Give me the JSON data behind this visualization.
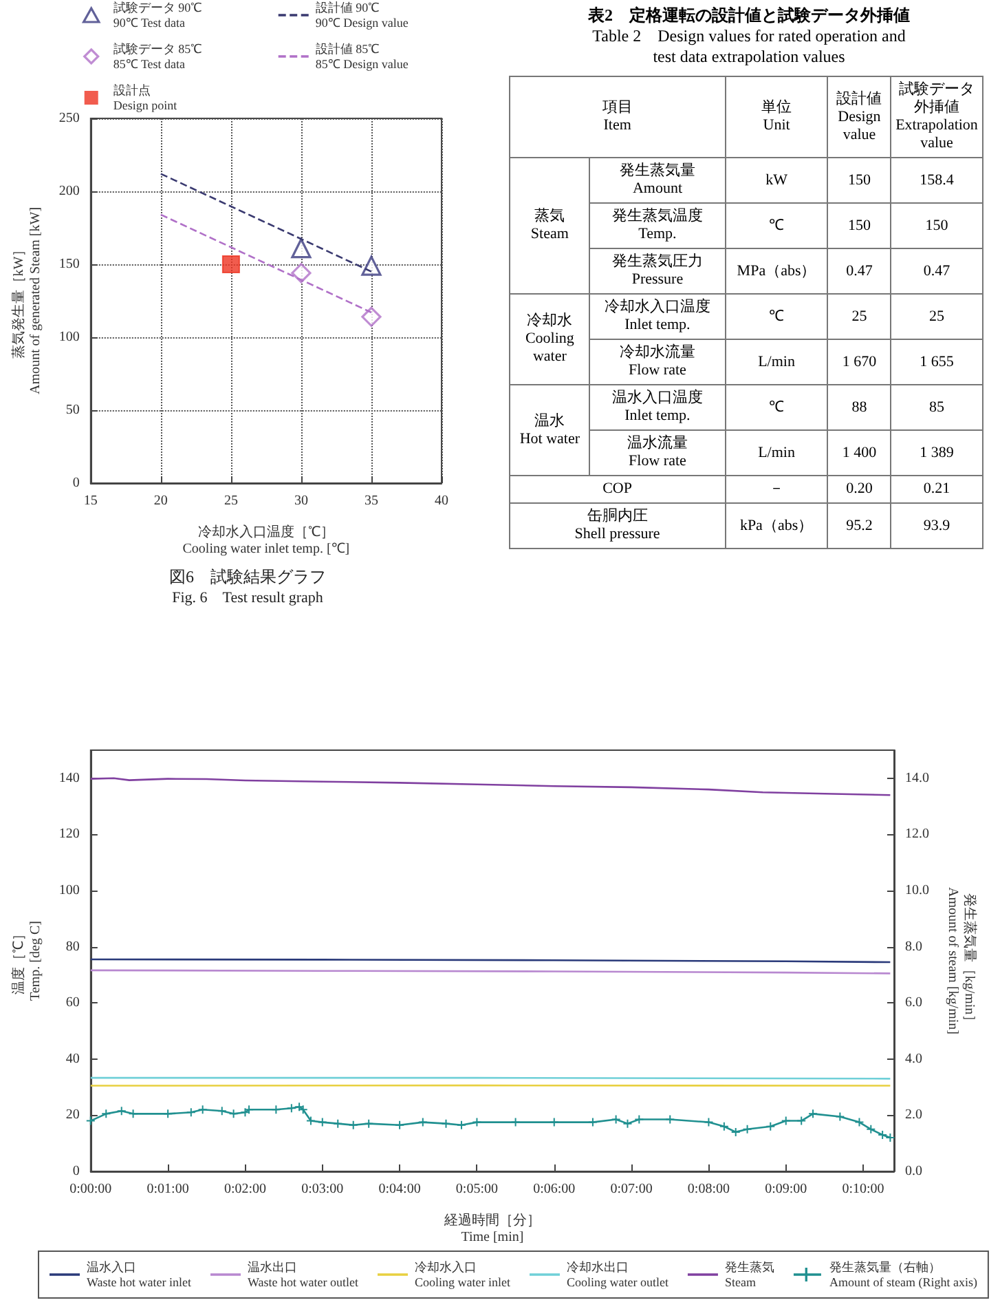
{
  "chart_data": [
    {
      "type": "scatter",
      "title": "図6　試験結果グラフ",
      "subtitle": "Fig. 6　Test result graph",
      "xlabel": "冷却水入口温度［℃］\nCooling water inlet temp. [℃]",
      "ylabel": "蒸気発生量［kW］\nAmount of generated Steam [kW]",
      "xlim": [
        15,
        40
      ],
      "xticks": [
        15,
        20,
        25,
        30,
        35,
        40
      ],
      "ylim": [
        0,
        250
      ],
      "yticks": [
        0,
        50,
        100,
        150,
        200,
        250
      ],
      "grid": true,
      "legend": "top",
      "series": [
        {
          "name": "試験データ 90℃\n90℃ Test data",
          "type": "scatter",
          "marker": "triangle",
          "color": "#3a3a80",
          "x": [
            30,
            35
          ],
          "values": [
            161,
            149
          ]
        },
        {
          "name": "設計値 90℃\n90℃ Design value",
          "type": "line",
          "marker": "none",
          "line_style": "dashed",
          "color": "#3a3a70",
          "x": [
            20,
            35
          ],
          "values": [
            212,
            145
          ]
        },
        {
          "name": "試験データ 85℃\n85℃ Test data",
          "type": "scatter",
          "marker": "diamond",
          "color": "#b070c8",
          "x": [
            30,
            35
          ],
          "values": [
            144,
            114
          ]
        },
        {
          "name": "設計値 85℃\n85℃ Design value",
          "type": "line",
          "marker": "none",
          "line_style": "dashed",
          "color": "#b070c8",
          "x": [
            20,
            35
          ],
          "values": [
            184,
            117
          ]
        },
        {
          "name": "設計点\nDesign point",
          "type": "scatter",
          "marker": "square",
          "color": "#ee3322",
          "x": [
            25
          ],
          "values": [
            150
          ]
        }
      ]
    },
    {
      "type": "other",
      "title": "表2　定格運転の設計値と試験データ外挿値",
      "subtitle": "Table 2　Design values for rated operation and\ntest data extrapolation values",
      "annotations": [
        "項目\nItem",
        "単位\nUnit",
        "設計値\nDesign\nvalue",
        "試験データ外挿値\nExtrapolation\nvalue",
        "蒸気\nSteam",
        "発生蒸気量\nAmount",
        "kW",
        "150",
        "158.4",
        "発生蒸気温度\nTemp.",
        "℃",
        "150",
        "150",
        "発生蒸気圧力\nPressure",
        "MPa（abs）",
        "0.47",
        "0.47",
        "冷却水\nCooling\nwater",
        "冷却水入口温度\nInlet temp.",
        "℃",
        "25",
        "25",
        "冷却水流量\nFlow rate",
        "L/min",
        "1 670",
        "1 655",
        "温水\nHot water",
        "温水入口温度\nInlet temp.",
        "℃",
        "88",
        "85",
        "温水流量\nFlow rate",
        "L/min",
        "1 400",
        "1 389",
        "COP",
        "－",
        "0.20",
        "0.21",
        "缶胴内圧\nShell pressure",
        "kPa（abs）",
        "95.2",
        "93.9"
      ]
    },
    {
      "type": "line",
      "xlabel": "経過時間［分］\nTime [min]",
      "ylabel": "温度［℃］\nTemp. [deg C]",
      "y2label": "発生蒸気量［kg/min］\nAmount of steam [kg/min]",
      "xlim": [
        0,
        10.4
      ],
      "xticks": [
        {
          "value": 0,
          "label": "0:00:00"
        },
        {
          "value": 1,
          "label": "0:01:00"
        },
        {
          "value": 2,
          "label": "0:02:00"
        },
        {
          "value": 3,
          "label": "0:03:00"
        },
        {
          "value": 4,
          "label": "0:04:00"
        },
        {
          "value": 5,
          "label": "0:05:00"
        },
        {
          "value": 6,
          "label": "0:06:00"
        },
        {
          "value": 7,
          "label": "0:07:00"
        },
        {
          "value": 8,
          "label": "0:08:00"
        },
        {
          "value": 9,
          "label": "0:09:00"
        },
        {
          "value": 10,
          "label": "0:10:00"
        }
      ],
      "ylim": [
        0,
        150
      ],
      "yticks": [
        0,
        20,
        40,
        60,
        80,
        100,
        120,
        140
      ],
      "y2lim": [
        0,
        15
      ],
      "y2ticks": [
        {
          "value": 0,
          "label": "0.0"
        },
        {
          "value": 2,
          "label": "2.0"
        },
        {
          "value": 4,
          "label": "4.0"
        },
        {
          "value": 6,
          "label": "6.0"
        },
        {
          "value": 8,
          "label": "8.0"
        },
        {
          "value": 10,
          "label": "10.0"
        },
        {
          "value": 12,
          "label": "12.0"
        },
        {
          "value": 14,
          "label": "14.0"
        }
      ],
      "grid": false,
      "legend": "bottom",
      "series": [
        {
          "name": "温水入口\nWaste hot water inlet",
          "marker": "none",
          "color": "#2a3a7a",
          "x": [
            0,
            3,
            6,
            9,
            10.35
          ],
          "values": [
            75.5,
            75.4,
            75.2,
            74.8,
            74.5
          ]
        },
        {
          "name": "温水出口\nWaste hot water outlet",
          "marker": "none",
          "color": "#b888d0",
          "x": [
            0,
            3,
            6,
            9,
            10.35
          ],
          "values": [
            71.6,
            71.4,
            71.2,
            70.8,
            70.5
          ]
        },
        {
          "name": "冷却水入口\nCooling water inlet",
          "marker": "none",
          "color": "#e8d040",
          "x": [
            0,
            5,
            10.35
          ],
          "values": [
            30.5,
            30.6,
            30.5
          ]
        },
        {
          "name": "冷却水出口\nCooling water outlet",
          "marker": "none",
          "color": "#70d0d8",
          "x": [
            0,
            5,
            10.35
          ],
          "values": [
            33.3,
            33.3,
            33
          ]
        },
        {
          "name": "発生蒸気\nSteam",
          "marker": "none",
          "color": "#8040a0",
          "x": [
            0,
            0.3,
            0.5,
            1,
            1.5,
            2,
            3,
            4,
            5,
            6,
            7,
            8,
            8.7,
            9.5,
            10.35
          ],
          "values": [
            139.8,
            140,
            139.3,
            139.8,
            139.7,
            139.2,
            138.8,
            138.4,
            137.8,
            137.2,
            136.8,
            136,
            135,
            134.5,
            134
          ]
        },
        {
          "name": "発生蒸気量（右軸）\nAmount of steam (Right axis)",
          "axis": "y2",
          "marker": "cross",
          "color": "#209090",
          "x": [
            0,
            0.2,
            0.4,
            0.55,
            1,
            1.3,
            1.45,
            1.7,
            1.85,
            2,
            2.05,
            2.4,
            2.6,
            2.7,
            2.75,
            2.85,
            3,
            3.2,
            3.4,
            3.6,
            4,
            4.3,
            4.6,
            4.8,
            5,
            5.5,
            6,
            6.5,
            6.8,
            6.95,
            7.1,
            7.5,
            8,
            8.2,
            8.35,
            8.5,
            8.8,
            9,
            9.2,
            9.35,
            9.7,
            9.95,
            10.1,
            10.25,
            10.35
          ],
          "values": [
            1.8,
            2.05,
            2.15,
            2.05,
            2.05,
            2.1,
            2.2,
            2.15,
            2.05,
            2.1,
            2.2,
            2.2,
            2.25,
            2.3,
            2.2,
            1.8,
            1.75,
            1.7,
            1.65,
            1.7,
            1.65,
            1.75,
            1.7,
            1.65,
            1.75,
            1.75,
            1.75,
            1.75,
            1.85,
            1.7,
            1.85,
            1.85,
            1.75,
            1.6,
            1.4,
            1.5,
            1.6,
            1.8,
            1.8,
            2.05,
            1.95,
            1.75,
            1.5,
            1.3,
            1.2
          ]
        }
      ]
    }
  ]
}
